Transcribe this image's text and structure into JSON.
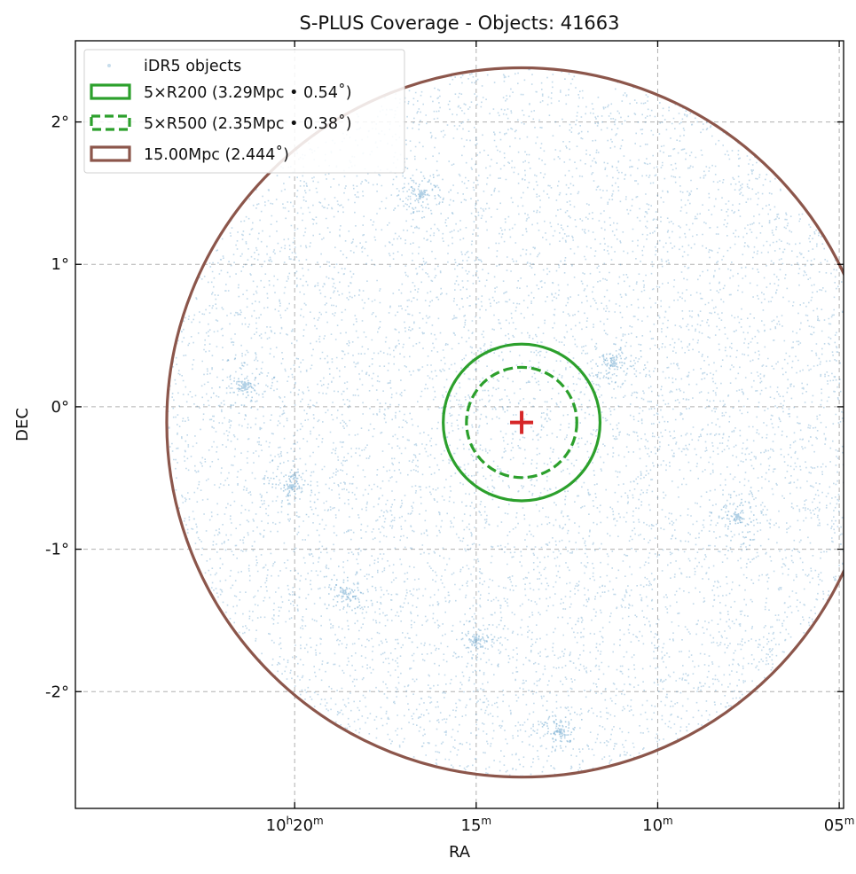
{
  "chart_data": {
    "type": "scatter",
    "title": "S-PLUS Coverage - Objects: 41663",
    "xlabel": "RA",
    "ylabel": "DEC",
    "x_unit": "deg",
    "y_unit": "deg",
    "x_inverted": true,
    "xlim": [
      156.51,
      151.22
    ],
    "ylim": [
      -2.82,
      2.57
    ],
    "x_ticks": [
      {
        "value": 155.0,
        "label_main": "10",
        "label_h": "h",
        "label_mid": "20",
        "label_sup": "m"
      },
      {
        "value": 153.75,
        "label_main": "15",
        "label_h": "",
        "label_mid": "",
        "label_sup": "m"
      },
      {
        "value": 152.5,
        "label_main": "10",
        "label_h": "",
        "label_mid": "",
        "label_sup": "m"
      },
      {
        "value": 151.25,
        "label_main": "05",
        "label_h": "",
        "label_mid": "",
        "label_sup": "m"
      }
    ],
    "y_ticks": [
      {
        "value": 2,
        "label": "2°"
      },
      {
        "value": 1,
        "label": "1°"
      },
      {
        "value": 0,
        "label": "0°"
      },
      {
        "value": -1,
        "label": "-1°"
      },
      {
        "value": -2,
        "label": "-2°"
      }
    ],
    "grid": true,
    "legend_position": "top-left",
    "center": {
      "ra": 153.437,
      "dec": -0.11
    },
    "object_count": 41663,
    "point_color": "#1f77b4",
    "series": [
      {
        "name": "iDR5 objects",
        "kind": "points",
        "color": "#1f77b4"
      },
      {
        "name": "5×R200 (3.29Mpc • 0.54˚)",
        "kind": "circle",
        "radius_deg": 0.54,
        "color": "#2ca02c",
        "dashed": false
      },
      {
        "name": "5×R500 (2.35Mpc • 0.38˚)",
        "kind": "circle",
        "radius_deg": 0.38,
        "color": "#2ca02c",
        "dashed": true
      },
      {
        "name": "15.00Mpc (2.444˚)",
        "kind": "circle",
        "radius_deg": 2.444,
        "color": "#8c564b",
        "dashed": false
      }
    ],
    "center_marker_color": "#d62728"
  }
}
